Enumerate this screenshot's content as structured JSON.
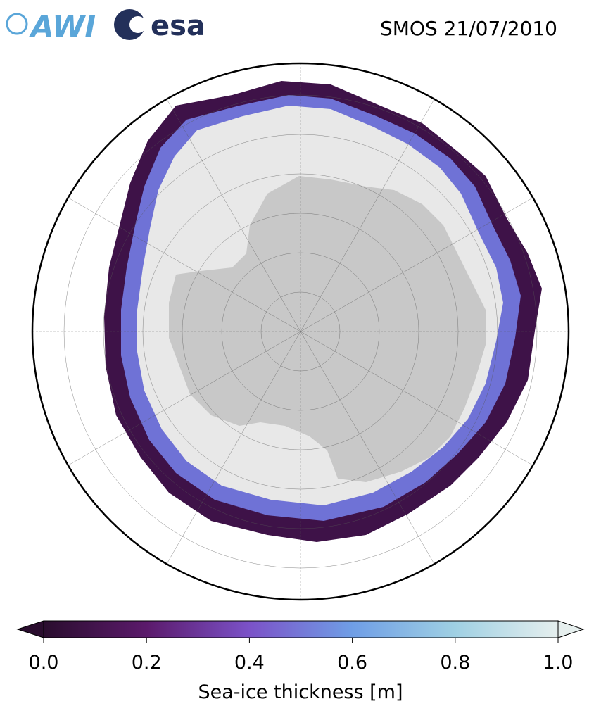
{
  "header": {
    "logos": [
      "AWI",
      "esa"
    ],
    "title": "SMOS 21/07/2010"
  },
  "colorbar": {
    "label": "Sea-ice thickness [m]",
    "lim": [
      0,
      1
    ],
    "ticks": [
      {
        "value": 0,
        "label": "0.0"
      },
      {
        "value": 0.2,
        "label": "0.2"
      },
      {
        "value": 0.4,
        "label": "0.4"
      },
      {
        "value": 0.6,
        "label": "0.6"
      },
      {
        "value": 0.8,
        "label": "0.8"
      },
      {
        "value": 1,
        "label": "1.0"
      }
    ],
    "colors": [
      "#2a0d2e",
      "#5b1a6b",
      "#7b52c8",
      "#6f9ee6",
      "#9fd0e3",
      "#e6efee"
    ]
  }
}
